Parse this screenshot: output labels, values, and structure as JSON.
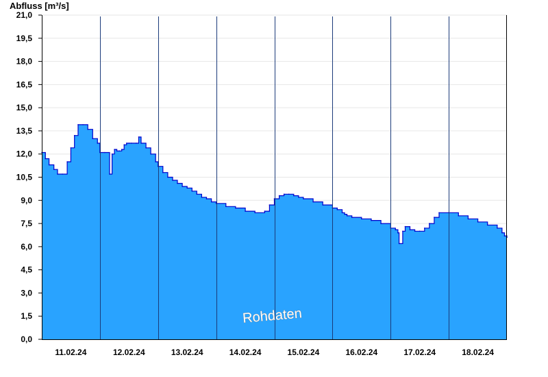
{
  "chart_data": {
    "type": "area",
    "title": "",
    "ylabel": "Abfluss [m³/s]",
    "xlabel": "",
    "ylim": [
      0,
      21
    ],
    "yticks": [
      "0,0",
      "1,5",
      "3,0",
      "4,5",
      "6,0",
      "7,5",
      "9,0",
      "10,5",
      "12,0",
      "13,5",
      "15,0",
      "16,5",
      "18,0",
      "19,5",
      "21,0"
    ],
    "xlim": [
      "2024-02-10T12:00",
      "2024-02-18T12:00"
    ],
    "xtick_labels": [
      "11.02.24",
      "12.02.24",
      "13.02.24",
      "14.02.24",
      "15.02.24",
      "16.02.24",
      "17.02.24",
      "18.02.24"
    ],
    "day_boundaries": [
      "2024-02-11T12:00",
      "2024-02-12T12:00",
      "2024-02-13T12:00",
      "2024-02-14T12:00",
      "2024-02-15T12:00",
      "2024-02-16T12:00",
      "2024-02-17T12:00"
    ],
    "grid": true,
    "watermark": "Rohdaten",
    "colors": {
      "fill": "#29a3ff",
      "line": "#0000cc",
      "grid": "#e6e6e6",
      "divider": "#1a3a7a"
    },
    "x": [
      "2024-02-10T12:00",
      "2024-02-10T13:30",
      "2024-02-10T15:00",
      "2024-02-10T17:00",
      "2024-02-10T18:30",
      "2024-02-10T20:30",
      "2024-02-10T22:30",
      "2024-02-11T00:00",
      "2024-02-11T01:30",
      "2024-02-11T03:00",
      "2024-02-11T05:00",
      "2024-02-11T07:00",
      "2024-02-11T09:00",
      "2024-02-11T11:00",
      "2024-02-11T12:00",
      "2024-02-11T14:00",
      "2024-02-11T16:00",
      "2024-02-11T17:00",
      "2024-02-11T18:00",
      "2024-02-11T19:00",
      "2024-02-11T20:00",
      "2024-02-11T21:00",
      "2024-02-11T22:00",
      "2024-02-11T23:00",
      "2024-02-12T00:00",
      "2024-02-12T01:00",
      "2024-02-12T03:00",
      "2024-02-12T04:00",
      "2024-02-12T05:00",
      "2024-02-12T07:00",
      "2024-02-12T09:00",
      "2024-02-12T11:00",
      "2024-02-12T12:00",
      "2024-02-12T14:00",
      "2024-02-12T16:00",
      "2024-02-12T18:00",
      "2024-02-12T20:00",
      "2024-02-12T22:00",
      "2024-02-13T00:00",
      "2024-02-13T02:00",
      "2024-02-13T04:00",
      "2024-02-13T06:00",
      "2024-02-13T08:00",
      "2024-02-13T10:00",
      "2024-02-13T12:00",
      "2024-02-13T16:00",
      "2024-02-13T20:00",
      "2024-02-14T00:00",
      "2024-02-14T04:00",
      "2024-02-14T08:00",
      "2024-02-14T10:00",
      "2024-02-14T12:00",
      "2024-02-14T14:00",
      "2024-02-14T16:00",
      "2024-02-14T18:00",
      "2024-02-14T20:00",
      "2024-02-14T22:00",
      "2024-02-15T00:00",
      "2024-02-15T04:00",
      "2024-02-15T08:00",
      "2024-02-15T12:00",
      "2024-02-15T14:00",
      "2024-02-15T16:00",
      "2024-02-15T17:00",
      "2024-02-15T18:00",
      "2024-02-15T20:00",
      "2024-02-16T00:00",
      "2024-02-16T04:00",
      "2024-02-16T08:00",
      "2024-02-16T12:00",
      "2024-02-16T14:00",
      "2024-02-16T15:00",
      "2024-02-16T15:30",
      "2024-02-16T17:00",
      "2024-02-16T18:00",
      "2024-02-16T20:00",
      "2024-02-16T22:00",
      "2024-02-17T00:00",
      "2024-02-17T02:00",
      "2024-02-17T04:00",
      "2024-02-17T06:00",
      "2024-02-17T08:00",
      "2024-02-17T12:00",
      "2024-02-17T16:00",
      "2024-02-17T20:00",
      "2024-02-18T00:00",
      "2024-02-18T04:00",
      "2024-02-18T08:00",
      "2024-02-18T10:00",
      "2024-02-18T11:00",
      "2024-02-18T12:00"
    ],
    "series": [
      {
        "values": [
          12.1,
          11.7,
          11.3,
          11.0,
          10.7,
          10.7,
          11.5,
          12.4,
          13.2,
          13.9,
          13.9,
          13.6,
          13.0,
          12.7,
          12.1,
          12.1,
          10.7,
          12.0,
          12.3,
          12.2,
          12.2,
          12.3,
          12.6,
          12.7,
          12.7,
          12.7,
          12.7,
          13.1,
          12.7,
          12.4,
          12.0,
          11.5,
          11.2,
          10.8,
          10.5,
          10.3,
          10.1,
          9.9,
          9.8,
          9.6,
          9.4,
          9.2,
          9.1,
          8.9,
          8.8,
          8.6,
          8.5,
          8.3,
          8.2,
          8.3,
          8.7,
          9.1,
          9.3,
          9.4,
          9.4,
          9.3,
          9.2,
          9.1,
          8.9,
          8.7,
          8.5,
          8.4,
          8.2,
          8.1,
          8.0,
          7.9,
          7.8,
          7.7,
          7.5,
          7.2,
          7.1,
          6.9,
          6.2,
          7.0,
          7.3,
          7.1,
          7.0,
          7.0,
          7.2,
          7.5,
          7.9,
          8.2,
          8.2,
          8.0,
          7.8,
          7.6,
          7.4,
          7.2,
          6.9,
          6.7,
          6.6
        ]
      }
    ]
  }
}
